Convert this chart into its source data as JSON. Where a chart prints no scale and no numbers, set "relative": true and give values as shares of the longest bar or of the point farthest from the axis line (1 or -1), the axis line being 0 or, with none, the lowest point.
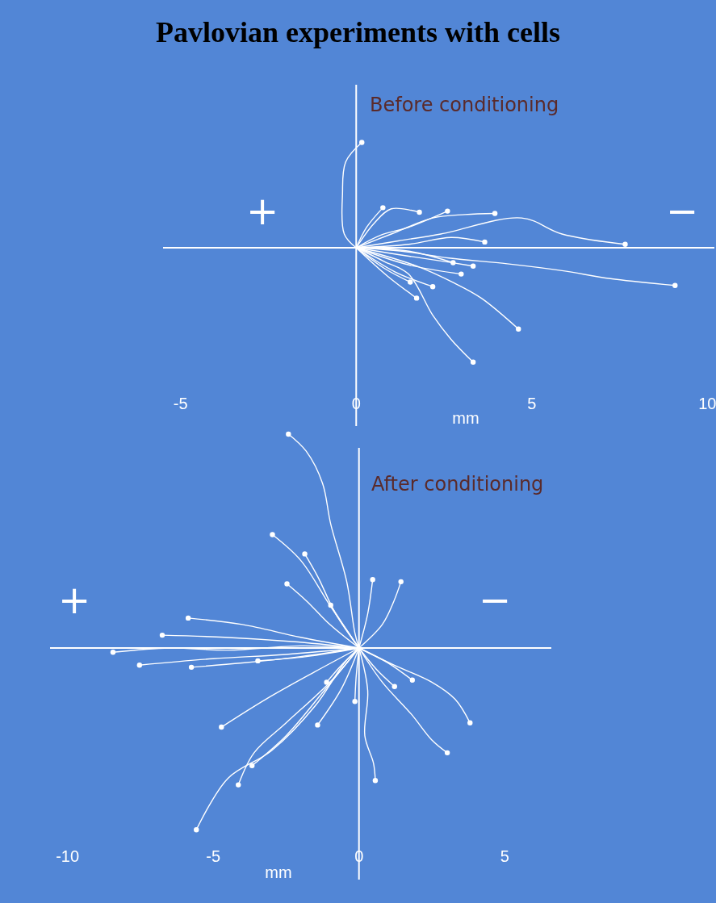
{
  "chart_data": [
    {
      "type": "line",
      "title": "Pavlovian experiments with cells",
      "xlabel": "mm",
      "annotations": [
        "Before conditioning",
        "+",
        "−"
      ],
      "relative": true,
      "xlim": [
        -5.5,
        10.2
      ],
      "xticks": [
        -5,
        0,
        5,
        10
      ],
      "tick_labels": "x",
      "line_style": "solid",
      "series": [
        {
          "color": "#ffffff",
          "x": [
            0,
            -0.34,
            -0.39,
            -0.3,
            0.16
          ],
          "values": [
            0,
            0.12,
            0.47,
            0.75,
            0.92
          ]
        },
        {
          "color": "#ffffff",
          "x": [
            0,
            1.2,
            2.41,
            4.71,
            5.86,
            7.66
          ],
          "values": [
            0,
            0.06,
            0.12,
            0.26,
            0.12,
            0.03
          ]
        },
        {
          "color": "#ffffff",
          "x": [
            0,
            1.3,
            2.64,
            4.3,
            5.86,
            7.24,
            9.08
          ],
          "values": [
            0,
            -0.03,
            -0.09,
            -0.14,
            -0.2,
            -0.27,
            -0.33
          ]
        },
        {
          "color": "#ffffff",
          "x": [
            0,
            1.72,
            2.8,
            3.56,
            4.62
          ],
          "values": [
            0,
            -0.16,
            -0.31,
            -0.44,
            -0.71
          ]
        },
        {
          "color": "#ffffff",
          "x": [
            0,
            0.8,
            1.49,
            2.18,
            2.7,
            3.33
          ],
          "values": [
            0,
            -0.12,
            -0.23,
            -0.59,
            -0.8,
            -1
          ]
        },
        {
          "color": "#ffffff",
          "x": [
            0,
            1.0,
            2.18,
            3.1,
            3.95
          ],
          "values": [
            0,
            0.12,
            0.26,
            0.29,
            0.3
          ]
        },
        {
          "color": "#ffffff",
          "x": [
            0,
            0.7,
            1.5,
            2.6
          ],
          "values": [
            0,
            0.11,
            0.18,
            0.32
          ]
        },
        {
          "color": "#ffffff",
          "x": [
            0,
            0.3,
            0.76
          ],
          "values": [
            0,
            0.18,
            0.35
          ]
        },
        {
          "color": "#ffffff",
          "x": [
            0,
            1.5,
            2.7,
            3.66
          ],
          "values": [
            0,
            0.03,
            0.09,
            0.05
          ]
        },
        {
          "color": "#ffffff",
          "x": [
            0,
            1.2,
            2.3,
            3.33
          ],
          "values": [
            0,
            -0.06,
            -0.11,
            -0.16
          ]
        },
        {
          "color": "#ffffff",
          "x": [
            0,
            1.5,
            2.99
          ],
          "values": [
            0,
            -0.15,
            -0.23
          ]
        },
        {
          "color": "#ffffff",
          "x": [
            0,
            1.1,
            2.18
          ],
          "values": [
            0,
            -0.21,
            -0.34
          ]
        },
        {
          "color": "#ffffff",
          "x": [
            0,
            0.8,
            1.54
          ],
          "values": [
            0,
            -0.18,
            -0.3
          ]
        },
        {
          "color": "#ffffff",
          "x": [
            0,
            0.9,
            1.72
          ],
          "values": [
            0,
            -0.25,
            -0.44
          ]
        },
        {
          "color": "#ffffff",
          "x": [
            0,
            1.5,
            2.76
          ],
          "values": [
            0,
            -0.03,
            -0.13
          ]
        },
        {
          "color": "#ffffff",
          "x": [
            0,
            0.5,
            1.0,
            1.8
          ],
          "values": [
            0,
            0.21,
            0.34,
            0.31
          ]
        },
        {
          "type": "scatter",
          "marker": "circle",
          "color": "#ffffff",
          "x": [
            0.16,
            7.66,
            9.08,
            4.62,
            3.33,
            3.95,
            2.6,
            0.76,
            3.66,
            3.33,
            2.99,
            2.18,
            1.54,
            1.72,
            2.76,
            1.8
          ],
          "values": [
            0.92,
            0.03,
            -0.33,
            -0.71,
            -1,
            0.3,
            0.32,
            0.35,
            0.05,
            -0.16,
            -0.23,
            -0.34,
            -0.3,
            -0.44,
            -0.13,
            0.31
          ]
        }
      ]
    },
    {
      "type": "line",
      "xlabel": "mm",
      "annotations": [
        "After conditioning",
        "+",
        "−"
      ],
      "relative": true,
      "xlim": [
        -10.6,
        6.6
      ],
      "xticks": [
        -10,
        -5,
        0,
        5
      ],
      "tick_labels": "x",
      "line_style": "solid",
      "series": [
        {
          "color": "#ffffff",
          "x": [
            0,
            -0.14,
            -0.42,
            -0.97,
            -1.25,
            -1.81,
            -2.42
          ],
          "values": [
            0,
            0.07,
            0.31,
            0.58,
            0.77,
            0.92,
            1
          ]
        },
        {
          "color": "#ffffff",
          "x": [
            0,
            -1,
            -2,
            -2.97
          ],
          "values": [
            0,
            0.2,
            0.41,
            0.53
          ]
        },
        {
          "color": "#ffffff",
          "x": [
            0,
            -0.5,
            -1.5,
            -3,
            -4.5,
            -5.58
          ],
          "values": [
            0,
            -0.07,
            -0.27,
            -0.48,
            -0.61,
            -0.85
          ]
        },
        {
          "color": "#ffffff",
          "x": [
            0,
            -1,
            -2.5,
            -3.6,
            -4.14
          ],
          "values": [
            0,
            -0.16,
            -0.35,
            -0.49,
            -0.64
          ]
        },
        {
          "color": "#ffffff",
          "x": [
            0,
            -1.2,
            -2.5,
            -3.67
          ],
          "values": [
            0,
            -0.2,
            -0.41,
            -0.55
          ]
        },
        {
          "color": "#ffffff",
          "x": [
            0,
            -1.5,
            -3.2,
            -4.72
          ],
          "values": [
            0,
            -0.11,
            -0.24,
            -0.37
          ]
        },
        {
          "color": "#ffffff",
          "x": [
            0,
            -2,
            -4.5,
            -6.5,
            -8.44
          ],
          "values": [
            0,
            0.01,
            -0.01,
            0,
            -0.02
          ]
        },
        {
          "color": "#ffffff",
          "x": [
            0,
            -2.5,
            -5,
            -7.53
          ],
          "values": [
            0,
            -0.03,
            -0.05,
            -0.08
          ]
        },
        {
          "color": "#ffffff",
          "x": [
            0,
            -2.3,
            -4.6,
            -6.75
          ],
          "values": [
            0,
            0.03,
            0.05,
            0.06
          ]
        },
        {
          "color": "#ffffff",
          "x": [
            0,
            -2,
            -4,
            -5.86
          ],
          "values": [
            0,
            0.05,
            0.11,
            0.14
          ]
        },
        {
          "color": "#ffffff",
          "x": [
            0,
            -2,
            -4,
            -5.75
          ],
          "values": [
            0,
            -0.04,
            -0.07,
            -0.09
          ]
        },
        {
          "color": "#ffffff",
          "x": [
            0,
            -1,
            -1.8,
            -2.47
          ],
          "values": [
            0,
            0.11,
            0.22,
            0.3
          ]
        },
        {
          "color": "#ffffff",
          "x": [
            0,
            -0.8,
            -1.4,
            -1.86
          ],
          "values": [
            0,
            0.16,
            0.33,
            0.44
          ]
        },
        {
          "color": "#ffffff",
          "x": [
            0,
            0.3,
            0.2,
            0.5,
            0.56
          ],
          "values": [
            0,
            -0.2,
            -0.41,
            -0.54,
            -0.62
          ]
        },
        {
          "color": "#ffffff",
          "x": [
            0,
            1.2,
            2.5,
            3.3,
            3.81
          ],
          "values": [
            0,
            -0.08,
            -0.16,
            -0.24,
            -0.35
          ]
        },
        {
          "color": "#ffffff",
          "x": [
            0,
            0.8,
            1.8,
            2.5,
            3.03
          ],
          "values": [
            0,
            -0.16,
            -0.31,
            -0.43,
            -0.49
          ]
        },
        {
          "color": "#ffffff",
          "x": [
            0,
            0.8,
            1.2,
            1.44
          ],
          "values": [
            0,
            0.11,
            0.22,
            0.31
          ]
        },
        {
          "color": "#ffffff",
          "x": [
            0,
            0.6,
            1.22
          ],
          "values": [
            0,
            -0.1,
            -0.18
          ]
        },
        {
          "color": "#ffffff",
          "x": [
            0,
            1.0,
            1.83
          ],
          "values": [
            0,
            -0.07,
            -0.15
          ]
        },
        {
          "color": "#ffffff",
          "x": [
            0,
            -0.6,
            -1.42
          ],
          "values": [
            0,
            -0.19,
            -0.36
          ]
        },
        {
          "color": "#ffffff",
          "x": [
            0,
            0.3,
            0.47
          ],
          "values": [
            0,
            0.16,
            0.32
          ]
        },
        {
          "color": "#ffffff",
          "x": [
            0,
            -0.5,
            -0.97
          ],
          "values": [
            0,
            0.1,
            0.2
          ]
        },
        {
          "color": "#ffffff",
          "x": [
            0,
            -1.8,
            -3.47
          ],
          "values": [
            0,
            -0.04,
            -0.06
          ]
        },
        {
          "color": "#ffffff",
          "x": [
            0,
            -0.6,
            -1.11
          ],
          "values": [
            0,
            -0.08,
            -0.16
          ]
        },
        {
          "color": "#ffffff",
          "x": [
            0,
            -0.1,
            -0.14
          ],
          "values": [
            0,
            -0.14,
            -0.25
          ]
        },
        {
          "type": "scatter",
          "marker": "circle",
          "color": "#ffffff",
          "x": [
            -2.42,
            -2.97,
            -5.58,
            -4.14,
            -3.67,
            -4.72,
            -8.44,
            -7.53,
            -6.75,
            -5.86,
            -5.75,
            -2.47,
            -1.86,
            0.56,
            3.81,
            3.03,
            1.44,
            1.22,
            1.83,
            -1.42,
            0.47,
            -0.97,
            -3.47,
            -1.11,
            -0.14
          ],
          "values": [
            1,
            0.53,
            -0.85,
            -0.64,
            -0.55,
            -0.37,
            -0.02,
            -0.08,
            0.06,
            0.14,
            -0.09,
            0.3,
            0.44,
            -0.62,
            -0.35,
            -0.49,
            0.31,
            -0.18,
            -0.15,
            -0.36,
            0.32,
            0.2,
            -0.06,
            -0.16,
            -0.25
          ]
        }
      ]
    }
  ]
}
